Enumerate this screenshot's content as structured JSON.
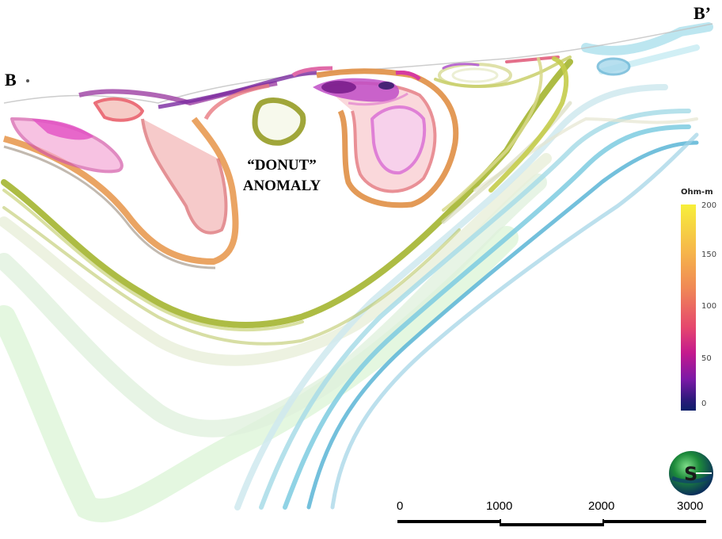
{
  "section_labels": {
    "start": "B",
    "end": "B’"
  },
  "annotation": {
    "line1": "“DONUT”",
    "line2": "ANOMALY"
  },
  "legend": {
    "unit": "Ohm-m",
    "ticks": [
      "200",
      "150",
      "100",
      "50",
      "0"
    ],
    "colors": [
      "#f7ef3a",
      "#f6b84a",
      "#f08a55",
      "#e5466e",
      "#c41a8e",
      "#7a1aa6",
      "#0d1f6a"
    ]
  },
  "scale_bar": {
    "labels": [
      "0",
      "1000",
      "2000",
      "3000"
    ]
  },
  "compass": {
    "letter": "S"
  }
}
